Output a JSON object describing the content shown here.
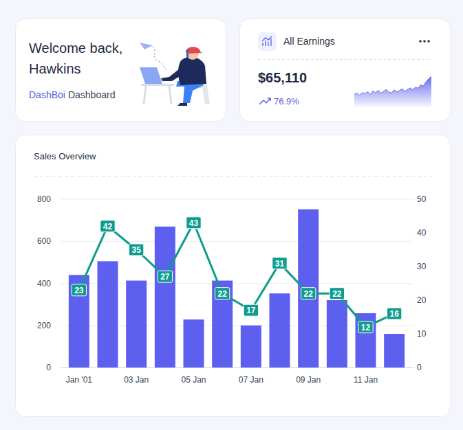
{
  "welcome": {
    "greeting": "Welcome back,",
    "name": "Hawkins",
    "brand": "DashBoi",
    "subtitle": "Dashboard"
  },
  "earnings": {
    "title": "All Earnings",
    "amount": "$65,110",
    "change": "76.9%"
  },
  "chart_data": [
    {
      "type": "area",
      "color": "#6366f1",
      "tick_labels": false,
      "ylim": [
        0,
        100
      ],
      "values": [
        34,
        36,
        31,
        38,
        35,
        40,
        33,
        42,
        37,
        44,
        36,
        41,
        46,
        39,
        37,
        45,
        40,
        43,
        48,
        41,
        46,
        50,
        45,
        52,
        49,
        58,
        55,
        66,
        74,
        80
      ]
    },
    {
      "type": "bar",
      "title": "Sales Overview",
      "categories": [
        "Jan '01",
        null,
        "03 Jan",
        null,
        "05 Jan",
        null,
        "07 Jan",
        null,
        "09 Jan",
        null,
        "11 Jan",
        null
      ],
      "series": [
        {
          "type": "bar",
          "color": "#5d5fef",
          "values": [
            440,
            505,
            413,
            670,
            228,
            413,
            200,
            352,
            752,
            320,
            258,
            160
          ]
        },
        {
          "type": "line",
          "axis": "y2",
          "color": "#0f9b8e",
          "data_labels": true,
          "values": [
            23,
            42,
            35,
            27,
            43,
            22,
            17,
            31,
            22,
            22,
            12,
            16
          ]
        }
      ],
      "ylim": [
        0,
        800
      ],
      "yticks": [
        0,
        200,
        400,
        600,
        800
      ],
      "y2lim": [
        0,
        50
      ],
      "y2ticks": [
        0,
        10,
        20,
        30,
        40,
        50
      ],
      "grid": true
    }
  ]
}
